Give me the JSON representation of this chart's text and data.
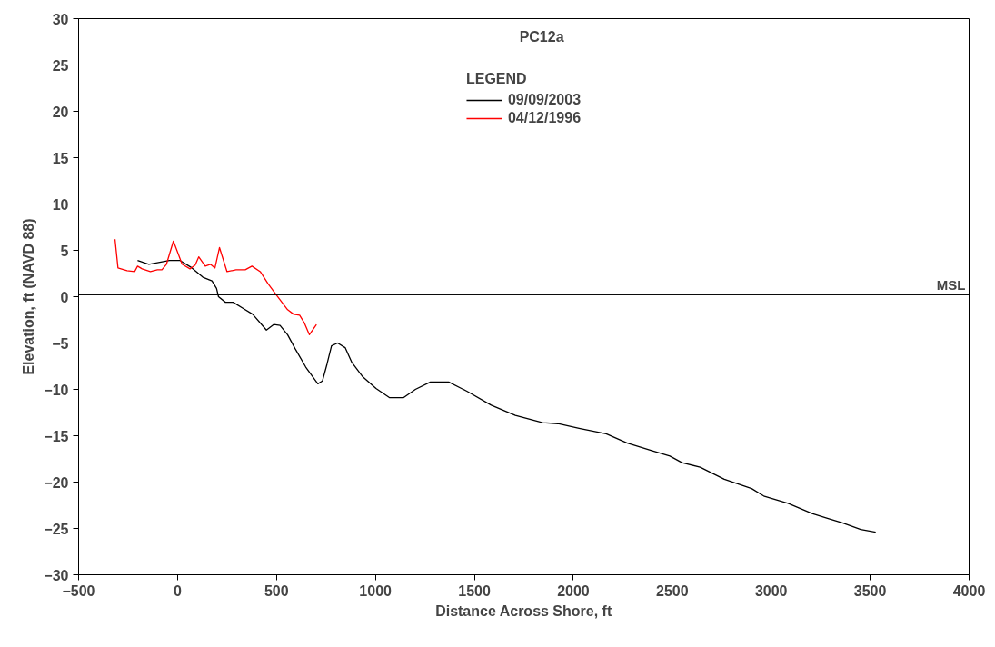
{
  "chart_data": {
    "type": "line",
    "title": "PC12a",
    "xlabel": "Distance Across Shore, ft",
    "ylabel": "Elevation, ft (NAVD 88)",
    "legend_title": "LEGEND",
    "legend": "top",
    "grid": false,
    "xlim": [
      -500,
      4000
    ],
    "xticks": [
      -500,
      0,
      500,
      1000,
      1500,
      2000,
      2500,
      3000,
      3500,
      4000
    ],
    "ylim": [
      -30,
      30
    ],
    "yticks": [
      -30,
      -25,
      -20,
      -15,
      -10,
      -5,
      0,
      5,
      10,
      15,
      20,
      25,
      30
    ],
    "ref_lines": [
      {
        "axis": "y",
        "value": 0.2,
        "label": "MSL",
        "color": "#000000"
      }
    ],
    "series": [
      {
        "name": "09/09/2003",
        "color": "#000000",
        "x": [
          -202,
          -145,
          -41,
          13,
          66,
          128,
          174,
          197,
          207,
          242,
          281,
          334,
          380,
          449,
          487,
          518,
          556,
          594,
          648,
          709,
          732,
          755,
          778,
          809,
          847,
          881,
          934,
          1003,
          1072,
          1141,
          1202,
          1278,
          1370,
          1462,
          1585,
          1707,
          1845,
          1922,
          2029,
          2166,
          2273,
          2396,
          2488,
          2549,
          2641,
          2763,
          2901,
          2962,
          3085,
          3207,
          3284,
          3360,
          3452,
          3528
        ],
        "values": [
          3.9,
          3.5,
          3.9,
          3.9,
          3.2,
          2.1,
          1.7,
          0.9,
          0.0,
          -0.6,
          -0.6,
          -1.3,
          -1.9,
          -3.6,
          -3.0,
          -3.1,
          -4.1,
          -5.6,
          -7.6,
          -9.4,
          -9.1,
          -7.3,
          -5.3,
          -5.0,
          -5.5,
          -7.1,
          -8.6,
          -9.9,
          -10.9,
          -10.9,
          -10.0,
          -9.2,
          -9.2,
          -10.2,
          -11.7,
          -12.8,
          -13.6,
          -13.7,
          -14.2,
          -14.8,
          -15.8,
          -16.6,
          -17.2,
          -17.9,
          -18.4,
          -19.7,
          -20.7,
          -21.5,
          -22.3,
          -23.4,
          -23.9,
          -24.4,
          -25.1,
          -25.4
        ]
      },
      {
        "name": "04/12/1996",
        "color": "#ff0000",
        "x": [
          -316,
          -301,
          -255,
          -217,
          -202,
          -179,
          -137,
          -102,
          -79,
          -56,
          -21,
          23,
          63,
          89,
          107,
          140,
          166,
          189,
          212,
          250,
          296,
          342,
          376,
          418,
          457,
          502,
          556,
          587,
          617,
          640,
          666,
          702
        ],
        "values": [
          6.2,
          3.1,
          2.8,
          2.7,
          3.3,
          3.0,
          2.7,
          2.9,
          2.9,
          3.5,
          6.0,
          3.5,
          3.0,
          3.4,
          4.3,
          3.3,
          3.5,
          3.1,
          5.3,
          2.7,
          2.9,
          2.9,
          3.3,
          2.7,
          1.4,
          0.1,
          -1.4,
          -1.9,
          -2.0,
          -2.8,
          -4.1,
          -3.0
        ]
      }
    ]
  }
}
